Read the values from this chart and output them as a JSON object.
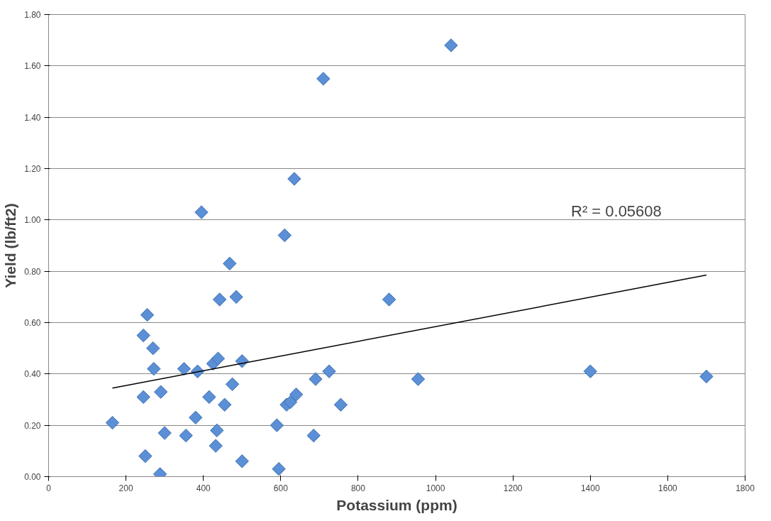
{
  "chart_data": {
    "type": "scatter",
    "xlabel": "Potassium (ppm)",
    "ylabel": "Yield (lb/ft2)",
    "annotations": [
      "R² = 0.05608"
    ],
    "xlim": [
      0,
      1800
    ],
    "xticks": [
      0,
      200,
      400,
      600,
      800,
      1000,
      1200,
      1400,
      1600,
      1800
    ],
    "ylim": [
      0,
      1.8
    ],
    "yticks": [
      {
        "value": 0,
        "label": "0.00"
      },
      {
        "value": 0.2,
        "label": "0.20"
      },
      {
        "value": 0.4,
        "label": "0.40"
      },
      {
        "value": 0.6,
        "label": "0.60"
      },
      {
        "value": 0.8,
        "label": "0.80"
      },
      {
        "value": 1.0,
        "label": "1.00"
      },
      {
        "value": 1.2,
        "label": "1.20"
      },
      {
        "value": 1.4,
        "label": "1.40"
      },
      {
        "value": 1.6,
        "label": "1.60"
      },
      {
        "value": 1.8,
        "label": "1.80"
      }
    ],
    "grid": "y",
    "series": [
      {
        "marker": "diamond",
        "color": "#5b8fd6",
        "x": [
          165,
          245,
          255,
          245,
          250,
          270,
          272,
          290,
          288,
          300,
          350,
          355,
          380,
          385,
          395,
          415,
          425,
          432,
          435,
          438,
          442,
          455,
          468,
          475,
          485,
          500,
          500,
          590,
          595,
          610,
          615,
          625,
          635,
          640,
          685,
          690,
          710,
          725,
          755,
          880,
          955,
          1040,
          1400,
          1700
        ],
        "values": [
          0.21,
          0.55,
          0.63,
          0.31,
          0.08,
          0.5,
          0.42,
          0.33,
          0.01,
          0.17,
          0.42,
          0.16,
          0.23,
          0.41,
          1.03,
          0.31,
          0.44,
          0.12,
          0.18,
          0.46,
          0.69,
          0.28,
          0.83,
          0.36,
          0.7,
          0.45,
          0.06,
          0.2,
          0.03,
          0.94,
          0.28,
          0.29,
          1.16,
          0.32,
          0.16,
          0.38,
          1.55,
          0.41,
          0.28,
          0.69,
          0.38,
          1.68,
          0.41,
          0.39
        ]
      },
      {
        "type": "line",
        "color": "#000000",
        "x": [
          165,
          1700
        ],
        "values": [
          0.345,
          0.785
        ]
      }
    ]
  }
}
